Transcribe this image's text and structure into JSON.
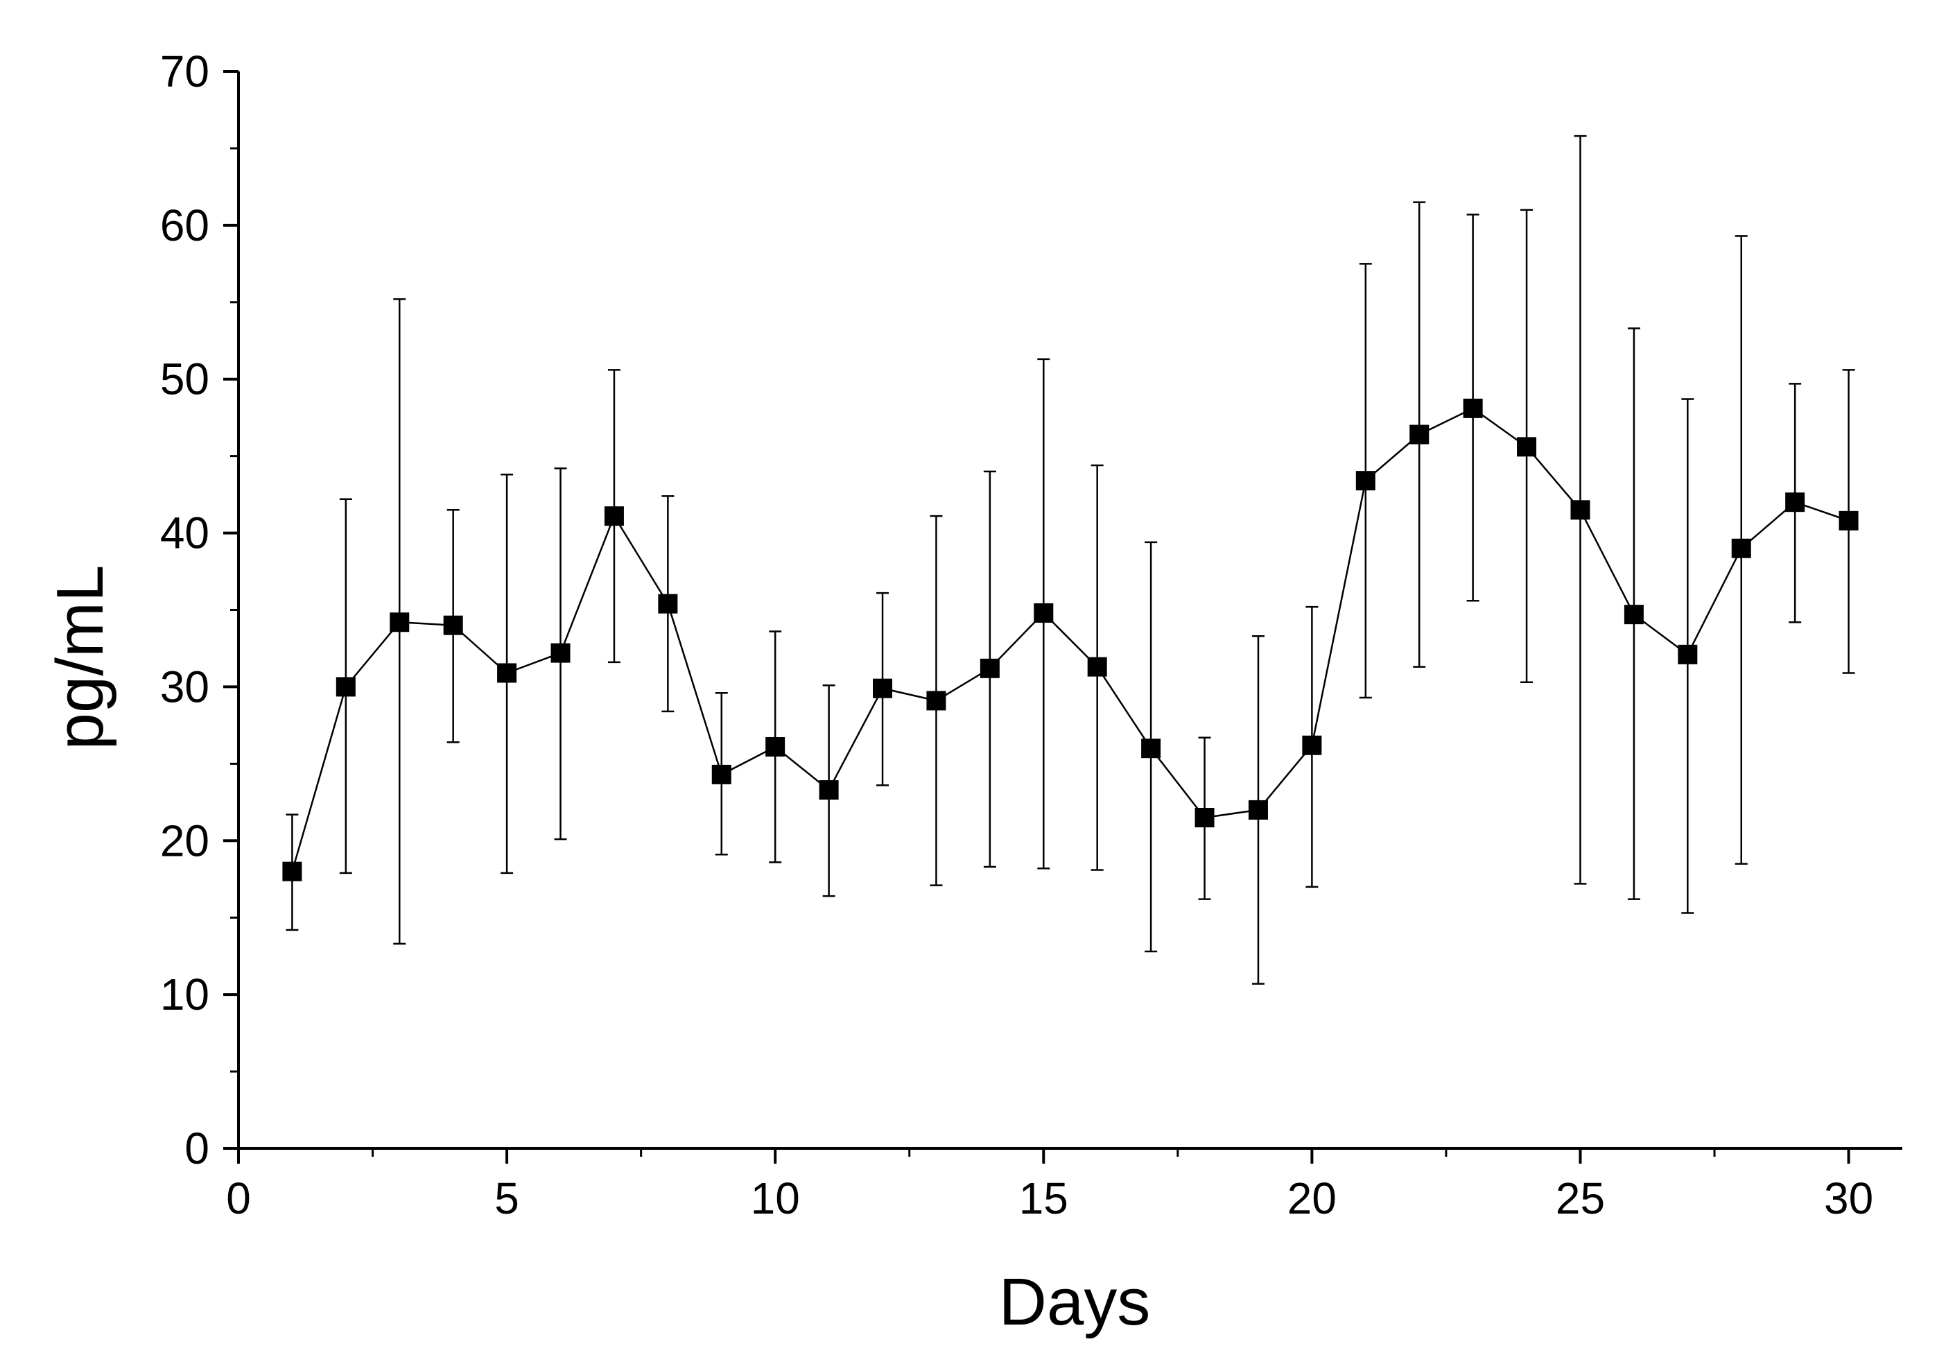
{
  "chart_data": {
    "type": "line",
    "title": "",
    "xlabel": "Days",
    "ylabel": "pg/mL",
    "xlim": [
      0,
      31
    ],
    "ylim": [
      0,
      70
    ],
    "xticks": [
      0,
      5,
      10,
      15,
      20,
      25,
      30
    ],
    "yticks": [
      0,
      10,
      20,
      30,
      40,
      50,
      60,
      70
    ],
    "grid": false,
    "legend": "none",
    "marker": "square",
    "color": "#000000",
    "series": [
      {
        "name": "pg/mL",
        "x": [
          1,
          2,
          3,
          4,
          5,
          6,
          7,
          8,
          9,
          10,
          11,
          12,
          13,
          14,
          15,
          16,
          17,
          18,
          19,
          20,
          21,
          22,
          23,
          24,
          25,
          26,
          27,
          28,
          29,
          30
        ],
        "values": [
          18.0,
          30.0,
          34.2,
          34.0,
          30.9,
          32.2,
          41.1,
          35.4,
          24.3,
          26.1,
          23.3,
          29.9,
          29.1,
          31.2,
          34.8,
          31.3,
          26.0,
          21.5,
          22.0,
          26.2,
          43.4,
          46.4,
          48.1,
          45.6,
          41.5,
          34.7,
          32.1,
          39.0,
          42.0,
          40.8
        ],
        "err_low": [
          14.2,
          17.9,
          13.3,
          26.4,
          17.9,
          20.1,
          31.6,
          28.4,
          19.1,
          18.6,
          16.4,
          23.6,
          17.1,
          18.3,
          18.2,
          18.1,
          12.8,
          16.2,
          10.7,
          17.0,
          29.3,
          31.3,
          35.6,
          30.3,
          17.2,
          16.2,
          15.3,
          18.5,
          34.2,
          30.9
        ],
        "err_high": [
          21.7,
          42.2,
          55.2,
          41.5,
          43.8,
          44.2,
          50.6,
          42.4,
          29.6,
          33.6,
          30.1,
          36.1,
          41.1,
          44.0,
          51.3,
          44.4,
          39.4,
          26.7,
          33.3,
          35.2,
          57.5,
          61.5,
          60.7,
          61.0,
          65.8,
          53.3,
          48.7,
          59.3,
          49.7,
          50.6
        ]
      }
    ]
  }
}
